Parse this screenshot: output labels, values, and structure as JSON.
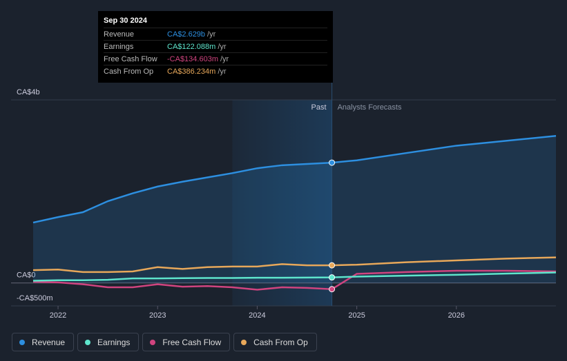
{
  "chart_data": {
    "type": "line",
    "x": [
      2021.75,
      2022,
      2022.25,
      2022.5,
      2022.75,
      2023,
      2023.25,
      2023.5,
      2023.75,
      2024,
      2024.25,
      2024.5,
      2024.75,
      2025,
      2025.5,
      2026,
      2026.5,
      2027
    ],
    "xlim": [
      2021.75,
      2027
    ],
    "xticks": [
      2022,
      2023,
      2024,
      2025,
      2026
    ],
    "ylim": [
      -500,
      4000
    ],
    "yticks": [
      {
        "value": 4000,
        "label": "CA$4b"
      },
      {
        "value": 0,
        "label": "CA$0"
      },
      {
        "value": -500,
        "label": "-CA$500m"
      }
    ],
    "past_label": "Past",
    "forecast_label": "Analysts Forecasts",
    "series": [
      {
        "name": "Revenue",
        "color": "#2d8fe0",
        "values": [
          1320,
          1440,
          1547,
          1787,
          1960,
          2107,
          2213,
          2307,
          2400,
          2507,
          2573,
          2600,
          2629,
          2680,
          2840,
          3000,
          3107,
          3213
        ]
      },
      {
        "name": "Earnings",
        "color": "#5ee5cc",
        "values": [
          50,
          60,
          60,
          70,
          100,
          100,
          105,
          110,
          110,
          115,
          115,
          118,
          122,
          140,
          160,
          180,
          205,
          230
        ]
      },
      {
        "name": "Free Cash Flow",
        "color": "#d0447f",
        "values": [
          27,
          13,
          -27,
          -93,
          -93,
          -27,
          -80,
          -67,
          -93,
          -147,
          -93,
          -107,
          -135,
          200,
          240,
          267,
          267,
          253
        ]
      },
      {
        "name": "Cash From Op",
        "color": "#e8a85a",
        "values": [
          280,
          293,
          240,
          240,
          253,
          347,
          307,
          347,
          360,
          360,
          413,
          387,
          386,
          400,
          453,
          493,
          533,
          560
        ]
      }
    ],
    "tooltip": {
      "date": "Sep 30 2024",
      "unit": "/yr",
      "rows": [
        {
          "label": "Revenue",
          "value": "CA$2.629b"
        },
        {
          "label": "Earnings",
          "value": "CA$122.088m"
        },
        {
          "label": "Free Cash Flow",
          "value": "-CA$134.603m"
        },
        {
          "label": "Cash From Op",
          "value": "CA$386.234m"
        }
      ]
    }
  }
}
